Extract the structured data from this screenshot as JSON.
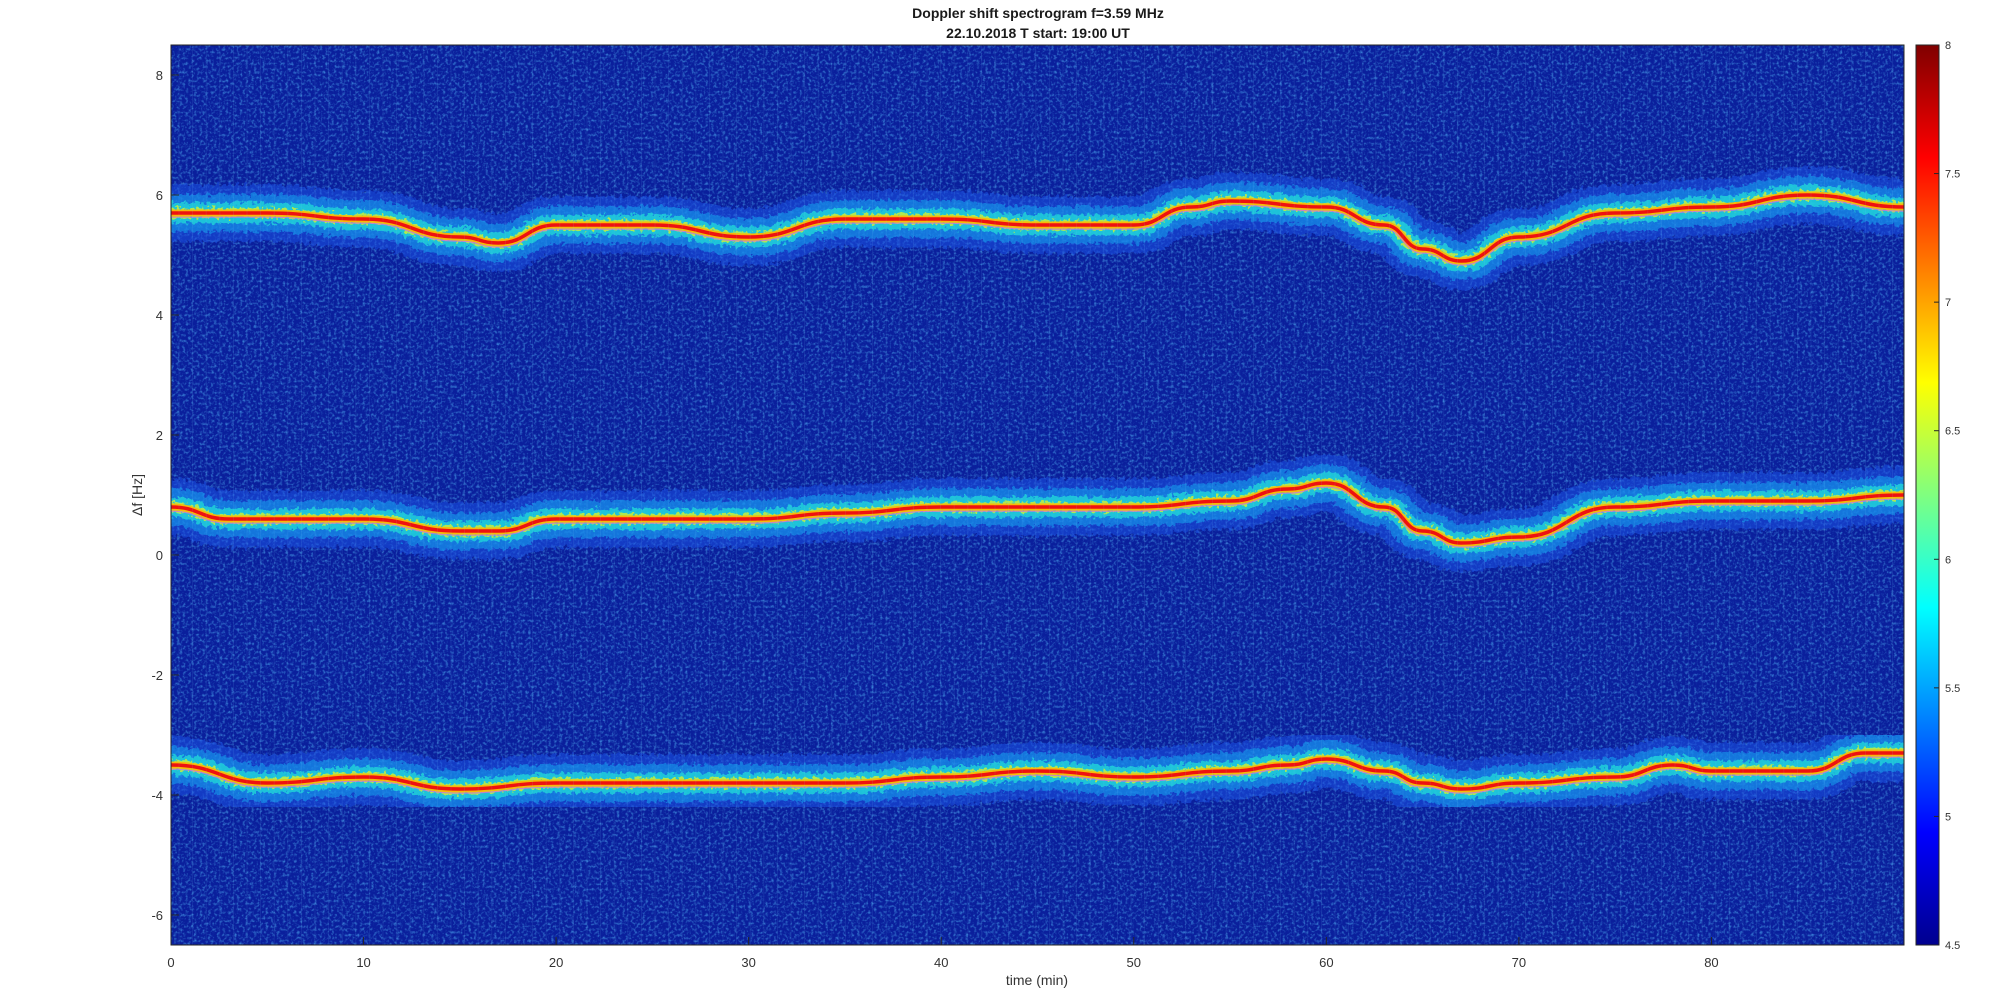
{
  "chart_data": {
    "type": "heatmap",
    "title": "Doppler shift spectrogram f=3.59 MHz",
    "subtitle": "22.10.2018   T start: 19:00 UT",
    "xlabel": "time (min)",
    "ylabel": "Δf [Hz]",
    "xlim": [
      0,
      90
    ],
    "ylim": [
      -6.5,
      8.5
    ],
    "x_ticks": [
      0,
      10,
      20,
      30,
      40,
      50,
      60,
      70,
      80
    ],
    "y_ticks": [
      -6,
      -4,
      -2,
      0,
      2,
      4,
      6,
      8
    ],
    "colorbar": {
      "colormap": "jet",
      "range": [
        4.5,
        8
      ],
      "ticks": [
        "4.5",
        "5",
        "5.5",
        "6",
        "6.5",
        "7",
        "7.5",
        "8"
      ]
    },
    "series": [
      {
        "x": [
          0,
          5,
          10,
          15,
          17,
          20,
          25,
          30,
          35,
          40,
          45,
          50,
          53,
          55,
          60,
          63,
          65,
          67,
          70,
          75,
          80,
          85,
          90
        ],
        "y": [
          5.7,
          5.7,
          5.6,
          5.3,
          5.2,
          5.5,
          5.5,
          5.3,
          5.6,
          5.6,
          5.5,
          5.5,
          5.8,
          5.9,
          5.8,
          5.5,
          5.1,
          4.9,
          5.3,
          5.7,
          5.8,
          6.0,
          5.8
        ]
      },
      {
        "x": [
          0,
          3,
          5,
          10,
          15,
          17,
          20,
          25,
          30,
          35,
          40,
          45,
          50,
          55,
          58,
          60,
          63,
          65,
          67,
          70,
          75,
          80,
          85,
          90
        ],
        "y": [
          0.8,
          0.6,
          0.6,
          0.6,
          0.4,
          0.4,
          0.6,
          0.6,
          0.6,
          0.7,
          0.8,
          0.8,
          0.8,
          0.9,
          1.1,
          1.2,
          0.8,
          0.4,
          0.2,
          0.3,
          0.8,
          0.9,
          0.9,
          1.0
        ]
      },
      {
        "x": [
          0,
          5,
          10,
          15,
          20,
          25,
          30,
          35,
          40,
          45,
          50,
          55,
          58,
          60,
          63,
          65,
          67,
          70,
          75,
          78,
          80,
          85,
          88,
          90
        ],
        "y": [
          -3.5,
          -3.8,
          -3.7,
          -3.9,
          -3.8,
          -3.8,
          -3.8,
          -3.8,
          -3.7,
          -3.6,
          -3.7,
          -3.6,
          -3.5,
          -3.4,
          -3.6,
          -3.8,
          -3.9,
          -3.8,
          -3.7,
          -3.5,
          -3.6,
          -3.6,
          -3.3,
          -3.3
        ]
      }
    ]
  }
}
